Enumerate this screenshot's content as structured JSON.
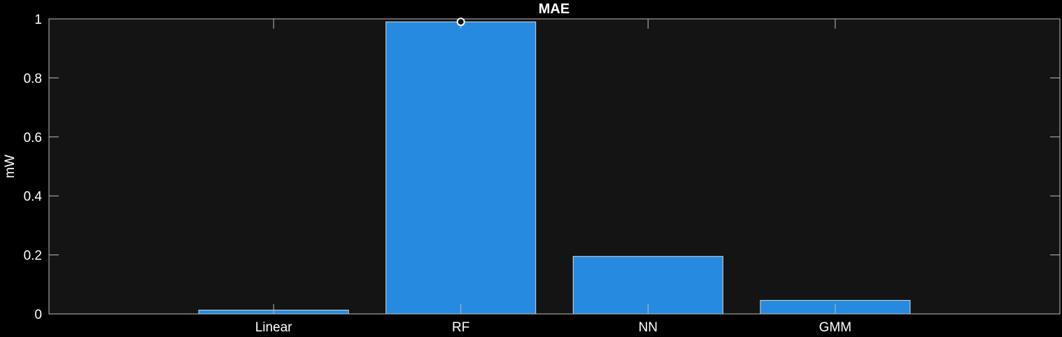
{
  "chart_data": {
    "type": "bar",
    "title": "MAE",
    "xlabel": "",
    "ylabel": "mW",
    "categories": [
      "Linear",
      "RF",
      "NN",
      "GMM"
    ],
    "values": [
      0.013,
      0.99,
      0.195,
      0.046
    ],
    "ylim": [
      0,
      1
    ],
    "yticks": [
      "0",
      "0.2",
      "0.4",
      "0.6",
      "0.8",
      "1"
    ],
    "grid": false,
    "highlight": {
      "category": "RF",
      "value": 0.99
    },
    "colors": {
      "figure_background": "#000000",
      "axes_background": "#141414",
      "bar_fill": "#268be0",
      "bar_edge": "#d8d8d8",
      "axis_line": "#bdbdbd",
      "text": "#ffffff",
      "marker_fill": "#141414",
      "marker_edge": "#ffffff"
    }
  }
}
